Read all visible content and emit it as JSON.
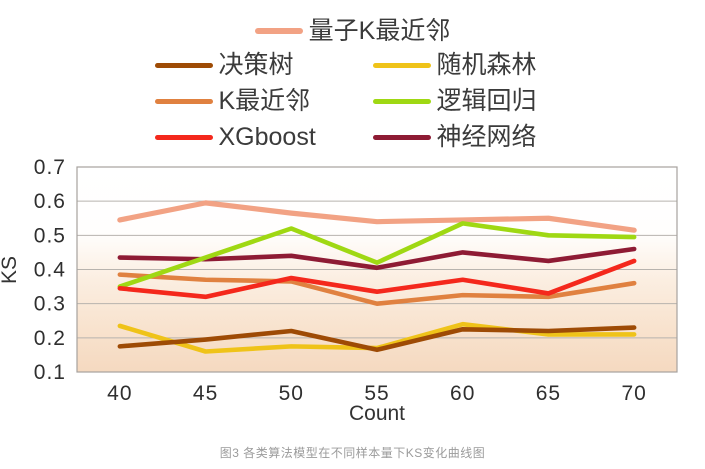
{
  "caption": "图3 各类算法模型在不同样本量下KS变化曲线图",
  "chart_data": {
    "type": "line",
    "title": "",
    "xlabel": "Count",
    "ylabel": "KS",
    "x": [
      40,
      45,
      50,
      55,
      60,
      65,
      70
    ],
    "ylim": [
      0.1,
      0.7
    ],
    "yticks": [
      "0.7",
      "0.6",
      "0.5",
      "0.4",
      "0.3",
      "0.2",
      "0.1"
    ],
    "grid": true,
    "legend_position": "top",
    "series": [
      {
        "name": "量子K最近邻",
        "color": "#f2a284",
        "values": [
          0.545,
          0.595,
          0.565,
          0.54,
          0.545,
          0.55,
          0.515
        ]
      },
      {
        "name": "决策树",
        "color": "#9e4b05",
        "values": [
          0.175,
          0.195,
          0.22,
          0.165,
          0.225,
          0.22,
          0.23
        ]
      },
      {
        "name": "随机森林",
        "color": "#efc319",
        "values": [
          0.235,
          0.16,
          0.175,
          0.17,
          0.24,
          0.21,
          0.21
        ]
      },
      {
        "name": "K最近邻",
        "color": "#e08140",
        "values": [
          0.385,
          0.37,
          0.365,
          0.3,
          0.325,
          0.32,
          0.36
        ]
      },
      {
        "name": "逻辑回归",
        "color": "#9fd813",
        "values": [
          0.35,
          0.435,
          0.52,
          0.42,
          0.535,
          0.5,
          0.495
        ]
      },
      {
        "name": "XGboost",
        "color": "#f4281c",
        "values": [
          0.345,
          0.32,
          0.375,
          0.335,
          0.37,
          0.33,
          0.425
        ]
      },
      {
        "name": "神经网络",
        "color": "#8e1b34",
        "values": [
          0.435,
          0.43,
          0.44,
          0.405,
          0.45,
          0.425,
          0.46
        ]
      }
    ]
  }
}
